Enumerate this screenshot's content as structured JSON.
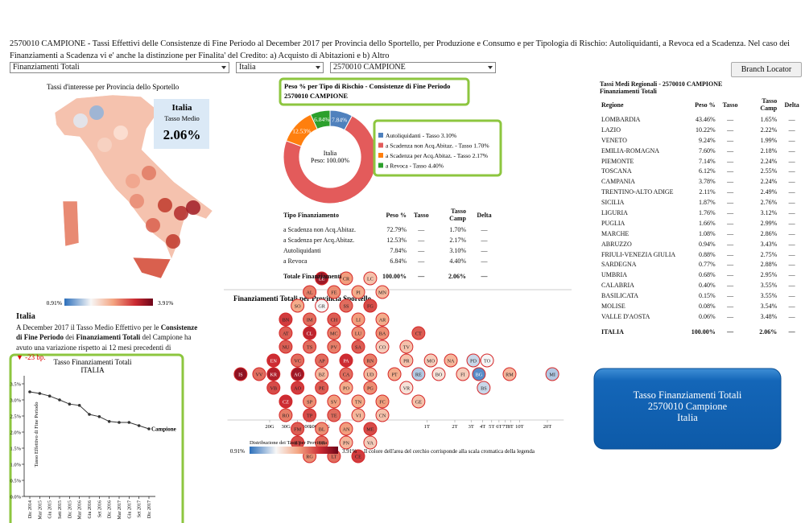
{
  "header": {
    "title": "2570010 CAMPIONE - Tassi Effettivi delle Consistenze di Fine Periodo al December 2017 per Provincia dello Sportello, per Produzione e Consumo e per Tipologia di Rischio: Autoliquidanti, a Revoca ed a Scadenza. Nel caso dei Finanziamenti a Scadenza vi e' anche la distinzione per Finalita' del Credito: a) Acquisto di Abitazioni e b) Altro"
  },
  "filters": [
    "Finanziamenti Totali",
    "Italia",
    "2570010 CAMPIONE"
  ],
  "button": "Branch Locator",
  "map": {
    "title": "Tassi d'interesse per Provincia dello Sportello",
    "area": "Italia",
    "label": "Tasso Medio",
    "value": "2.06%",
    "legend_min": "0.91%",
    "legend_max": "3.91%"
  },
  "summary": {
    "area": "Italia",
    "text_parts": [
      "A December 2017 il Tasso Medio Effettivo per le ",
      "Consistenze di Fine Periodo",
      " dei ",
      "Finanziamenti Totali",
      " del Campione ha avuto una variazione rispetto ai 12 mesi precedenti di"
    ],
    "change": "▼ -23 bp."
  },
  "line_chart": {
    "type": "line",
    "title": "Tasso Finanziamenti Totali",
    "subtitle": "ITALIA",
    "ylabel": "Tasso Effettivo di Fine Periodo",
    "categories": [
      "Dic 2014",
      "Mar 2015",
      "Giu 2015",
      "Sett 2015",
      "Dic 2015",
      "Mar 2016",
      "Giu 2016",
      "Set 2016",
      "Dic 2016",
      "Mar 2017",
      "Giu 2017",
      "Set 2017",
      "Dic 2017"
    ],
    "series": [
      {
        "name": "Campione",
        "color": "#333333",
        "values": [
          3.25,
          3.2,
          3.12,
          3.0,
          2.87,
          2.83,
          2.55,
          2.48,
          2.33,
          2.3,
          2.3,
          2.2,
          2.1
        ]
      }
    ],
    "ylim": [
      0,
      3.75
    ],
    "yticks": [
      {
        "value": 0,
        "label": "0.0%"
      },
      {
        "value": 0.5,
        "label": "0.5%"
      },
      {
        "value": 1,
        "label": "1.0%"
      },
      {
        "value": 1.5,
        "label": "1.5%"
      },
      {
        "value": 2,
        "label": "2.0%"
      },
      {
        "value": 2.5,
        "label": "2.5%"
      },
      {
        "value": 3,
        "label": "3.0%"
      },
      {
        "value": 3.5,
        "label": "3.5%"
      }
    ]
  },
  "donut": {
    "type": "pie",
    "title": "Peso % per Tipo di Rischio - Consistenze di Fine Periodo",
    "subtitle": "2570010 CAMPIONE",
    "center": [
      "Italia",
      "Peso: 100.00%"
    ],
    "categories": [
      "Autoliquidanti - Tasso 3.10%",
      "a Scadenza non Acq.Abitaz. - Tasso 1.70%",
      "a Scadenza per Acq.Abitaz. - Tasso 2.17%",
      "a Revoca - Tasso 4.40%"
    ],
    "values": [
      7.84,
      72.79,
      12.53,
      6.84
    ],
    "value_labels": [
      "7.84%",
      "72.79%",
      "12.53%",
      "6.84%"
    ],
    "colors": [
      "#4f81bd",
      "#e35b5b",
      "#ff7f0e",
      "#2ca02c"
    ]
  },
  "risk_table": {
    "headers": [
      "Tipo Finanziamento",
      "Peso %",
      "Tasso",
      "Tasso Camp",
      "Delta"
    ],
    "rows": [
      [
        "a Scadenza non Acq.Abitaz.",
        "72.79%",
        "—",
        "1.70%",
        "—"
      ],
      [
        "a Scadenza per Acq.Abitaz.",
        "12.53%",
        "—",
        "2.17%",
        "—"
      ],
      [
        "Autoliquidanti",
        "7.84%",
        "—",
        "3.10%",
        "—"
      ],
      [
        "a Revoca",
        "6.84%",
        "—",
        "4.40%",
        "—"
      ]
    ],
    "total": [
      "Totale Finanziamenti",
      "100.00%",
      "—",
      "2.06%",
      "—"
    ]
  },
  "bubble_chart": {
    "type": "scatter",
    "title": "Finanziamenti Totali per Provincia Sportello",
    "xscale": "log",
    "xlim": [
      7000000000,
      30000000000000
    ],
    "xticks": [
      {
        "value": 20000000000,
        "label": "20G"
      },
      {
        "value": 30000000000,
        "label": "30G"
      },
      {
        "value": 40000000000,
        "label": "40G"
      },
      {
        "value": 50000000000,
        "label": "50G"
      },
      {
        "value": 60000000000,
        "label": "60G"
      },
      {
        "value": 80000000000,
        "label": "80G"
      },
      {
        "value": 1000000000000,
        "label": "1T"
      },
      {
        "value": 2000000000000,
        "label": "2T"
      },
      {
        "value": 3000000000000,
        "label": "3T"
      },
      {
        "value": 4000000000000,
        "label": "4T"
      },
      {
        "value": 5000000000000,
        "label": "5T"
      },
      {
        "value": 6000000000000,
        "label": "6T"
      },
      {
        "value": 7000000000000,
        "label": "7T"
      },
      {
        "value": 8000000000000,
        "label": "8T"
      },
      {
        "value": 10000000000000,
        "label": "10T"
      },
      {
        "value": 20000000000000,
        "label": "20T"
      }
    ],
    "bubbles": [
      {
        "label": "IS",
        "amount": 9700000000,
        "rate": 3.7
      },
      {
        "label": "VV",
        "amount": 15400000000,
        "rate": 2.9
      },
      {
        "label": "KR",
        "amount": 22000000000,
        "rate": 3.5
      },
      {
        "label": "EN",
        "amount": 22000000000,
        "rate": 3.3
      },
      {
        "label": "VB",
        "amount": 22000000000,
        "rate": 3.1
      },
      {
        "label": "NU",
        "amount": 29800000000,
        "rate": 3.0
      },
      {
        "label": "CZ",
        "amount": 29800000000,
        "rate": 3.3
      },
      {
        "label": "AT",
        "amount": 29800000000,
        "rate": 3.0
      },
      {
        "label": "RO",
        "amount": 29800000000,
        "rate": 2.8
      },
      {
        "label": "BN",
        "amount": 29800000000,
        "rate": 3.2
      },
      {
        "label": "AG",
        "amount": 40000000000,
        "rate": 3.6
      },
      {
        "label": "VC",
        "amount": 40000000000,
        "rate": 2.9
      },
      {
        "label": "AO",
        "amount": 40000000000,
        "rate": 3.2
      },
      {
        "label": "FM",
        "amount": 40000000000,
        "rate": 3.0
      },
      {
        "label": "SO",
        "amount": 40000000000,
        "rate": 2.5
      },
      {
        "label": "BT",
        "amount": 40000000000,
        "rate": 3.1
      },
      {
        "label": "TS",
        "amount": 54000000000,
        "rate": 2.9
      },
      {
        "label": "SP",
        "amount": 54000000000,
        "rate": 2.7
      },
      {
        "label": "CL",
        "amount": 54000000000,
        "rate": 3.4
      },
      {
        "label": "TP",
        "amount": 54000000000,
        "rate": 3.1
      },
      {
        "label": "IM",
        "amount": 54000000000,
        "rate": 2.9
      },
      {
        "label": "AL",
        "amount": 54000000000,
        "rate": 2.8
      },
      {
        "label": "RG",
        "amount": 54000000000,
        "rate": 2.7
      },
      {
        "label": "BZ",
        "amount": 73000000000,
        "rate": 2.4
      },
      {
        "label": "AP",
        "amount": 73000000000,
        "rate": 2.9
      },
      {
        "label": "PE",
        "amount": 73000000000,
        "rate": 3.0
      },
      {
        "label": "BL",
        "amount": 73000000000,
        "rate": 2.7
      },
      {
        "label": "GR",
        "amount": 73000000000,
        "rate": 1.8
      },
      {
        "label": "TR",
        "amount": 73000000000,
        "rate": 2.9
      },
      {
        "label": "LE",
        "amount": 73000000000,
        "rate": 3.6
      },
      {
        "label": "PV",
        "amount": 99000000000,
        "rate": 2.8
      },
      {
        "label": "SV",
        "amount": 99000000000,
        "rate": 2.6
      },
      {
        "label": "MC",
        "amount": 99000000000,
        "rate": 2.8
      },
      {
        "label": "TE",
        "amount": 99000000000,
        "rate": 2.9
      },
      {
        "label": "CH",
        "amount": 99000000000,
        "rate": 3.0
      },
      {
        "label": "FE",
        "amount": 99000000000,
        "rate": 2.7
      },
      {
        "label": "LT",
        "amount": 99000000000,
        "rate": 2.9
      },
      {
        "label": "CA",
        "amount": 134000000000,
        "rate": 2.9
      },
      {
        "label": "PA",
        "amount": 134000000000,
        "rate": 3.3
      },
      {
        "label": "PO",
        "amount": 134000000000,
        "rate": 2.5
      },
      {
        "label": "AN",
        "amount": 134000000000,
        "rate": 2.6
      },
      {
        "label": "SS",
        "amount": 134000000000,
        "rate": 2.9
      },
      {
        "label": "PN",
        "amount": 134000000000,
        "rate": 2.4
      },
      {
        "label": "CR",
        "amount": 134000000000,
        "rate": 2.6
      },
      {
        "label": "SA",
        "amount": 181000000000,
        "rate": 3.0
      },
      {
        "label": "TN",
        "amount": 181000000000,
        "rate": 2.5
      },
      {
        "label": "LU",
        "amount": 181000000000,
        "rate": 2.7
      },
      {
        "label": "VI",
        "amount": 181000000000,
        "rate": 2.4
      },
      {
        "label": "LI",
        "amount": 181000000000,
        "rate": 2.6
      },
      {
        "label": "PI",
        "amount": 181000000000,
        "rate": 2.5
      },
      {
        "label": "CE",
        "amount": 181000000000,
        "rate": 3.2
      },
      {
        "label": "UD",
        "amount": 244000000000,
        "rate": 2.4
      },
      {
        "label": "RN",
        "amount": 244000000000,
        "rate": 2.8
      },
      {
        "label": "PG",
        "amount": 244000000000,
        "rate": 2.7
      },
      {
        "label": "ME",
        "amount": 244000000000,
        "rate": 3.1
      },
      {
        "label": "FG",
        "amount": 244000000000,
        "rate": 3.1
      },
      {
        "label": "VA",
        "amount": 244000000000,
        "rate": 2.2
      },
      {
        "label": "LC",
        "amount": 244000000000,
        "rate": 2.3
      },
      {
        "label": "CO",
        "amount": 330000000000,
        "rate": 2.2
      },
      {
        "label": "FC",
        "amount": 330000000000,
        "rate": 2.6
      },
      {
        "label": "BA",
        "amount": 330000000000,
        "rate": 2.7
      },
      {
        "label": "CN",
        "amount": 330000000000,
        "rate": 2.3
      },
      {
        "label": "AR",
        "amount": 330000000000,
        "rate": 2.5
      },
      {
        "label": "MN",
        "amount": 330000000000,
        "rate": 2.4
      },
      {
        "label": "PT",
        "amount": 446000000000,
        "rate": 2.5
      },
      {
        "label": "PR",
        "amount": 600000000000,
        "rate": 2.3
      },
      {
        "label": "VR",
        "amount": 600000000000,
        "rate": 2.0
      },
      {
        "label": "TV",
        "amount": 600000000000,
        "rate": 2.3
      },
      {
        "label": "RE",
        "amount": 810000000000,
        "rate": 1.5
      },
      {
        "label": "GE",
        "amount": 810000000000,
        "rate": 2.3
      },
      {
        "label": "CT",
        "amount": 810000000000,
        "rate": 3.0
      },
      {
        "label": "MO",
        "amount": 1100000000000,
        "rate": 2.2
      },
      {
        "label": "BO",
        "amount": 1340000000000,
        "rate": 2.0
      },
      {
        "label": "NA",
        "amount": 1810000000000,
        "rate": 2.4
      },
      {
        "label": "FI",
        "amount": 2440000000000,
        "rate": 2.2
      },
      {
        "label": "PD",
        "amount": 3170000000000,
        "rate": 1.6
      },
      {
        "label": "BG",
        "amount": 3640000000000,
        "rate": 1.1
      },
      {
        "label": "BS",
        "amount": 4100000000000,
        "rate": 1.6
      },
      {
        "label": "TO",
        "amount": 4460000000000,
        "rate": 1.8
      },
      {
        "label": "RM",
        "amount": 7800000000000,
        "rate": 2.4
      },
      {
        "label": "MI",
        "amount": 22600000000000,
        "rate": 1.5
      }
    ],
    "legend_title": "Distribuzione dei Tassi per Provincia",
    "legend_min": "0.91%",
    "legend_max": "3.91%",
    "color_min": 0.91,
    "color_max": 3.91,
    "note": "Il colore dell'area del cerchio corrisponde alla scala cromatica della legenda"
  },
  "regional_table": {
    "title": "Tassi Medi Regionali - 2570010 CAMPIONE",
    "subtitle": "Finanziamenti Totali",
    "headers": [
      "Regione",
      "Peso %",
      "Tasso",
      "Tasso Camp",
      "Delta"
    ],
    "rows": [
      [
        "LOMBARDIA",
        "43.46%",
        "—",
        "1.65%",
        "—"
      ],
      [
        "LAZIO",
        "10.22%",
        "—",
        "2.22%",
        "—"
      ],
      [
        "VENETO",
        "9.24%",
        "—",
        "1.99%",
        "—"
      ],
      [
        "EMILIA-ROMAGNA",
        "7.60%",
        "—",
        "2.18%",
        "—"
      ],
      [
        "PIEMONTE",
        "7.14%",
        "—",
        "2.24%",
        "—"
      ],
      [
        "TOSCANA",
        "6.12%",
        "—",
        "2.55%",
        "—"
      ],
      [
        "CAMPANIA",
        "3.78%",
        "—",
        "2.24%",
        "—"
      ],
      [
        "TRENTINO-ALTO ADIGE",
        "2.11%",
        "—",
        "2.49%",
        "—"
      ],
      [
        "SICILIA",
        "1.87%",
        "—",
        "2.76%",
        "—"
      ],
      [
        "LIGURIA",
        "1.76%",
        "—",
        "3.12%",
        "—"
      ],
      [
        "PUGLIA",
        "1.66%",
        "—",
        "2.99%",
        "—"
      ],
      [
        "MARCHE",
        "1.08%",
        "—",
        "2.86%",
        "—"
      ],
      [
        "ABRUZZO",
        "0.94%",
        "—",
        "3.43%",
        "—"
      ],
      [
        "FRIULI-VENEZIA GIULIA",
        "0.88%",
        "—",
        "2.75%",
        "—"
      ],
      [
        "SARDEGNA",
        "0.77%",
        "—",
        "2.88%",
        "—"
      ],
      [
        "UMBRIA",
        "0.68%",
        "—",
        "2.95%",
        "—"
      ],
      [
        "CALABRIA",
        "0.40%",
        "—",
        "3.55%",
        "—"
      ],
      [
        "BASILICATA",
        "0.15%",
        "—",
        "3.55%",
        "—"
      ],
      [
        "MOLISE",
        "0.08%",
        "—",
        "3.54%",
        "—"
      ],
      [
        "VALLE D'AOSTA",
        "0.06%",
        "—",
        "3.48%",
        "—"
      ]
    ],
    "total": [
      "ITALIA",
      "100.00%",
      "—",
      "2.06%",
      "—"
    ]
  },
  "highlight": [
    "Tasso Finanziamenti Totali",
    "2570010 Campione",
    "Italia"
  ]
}
